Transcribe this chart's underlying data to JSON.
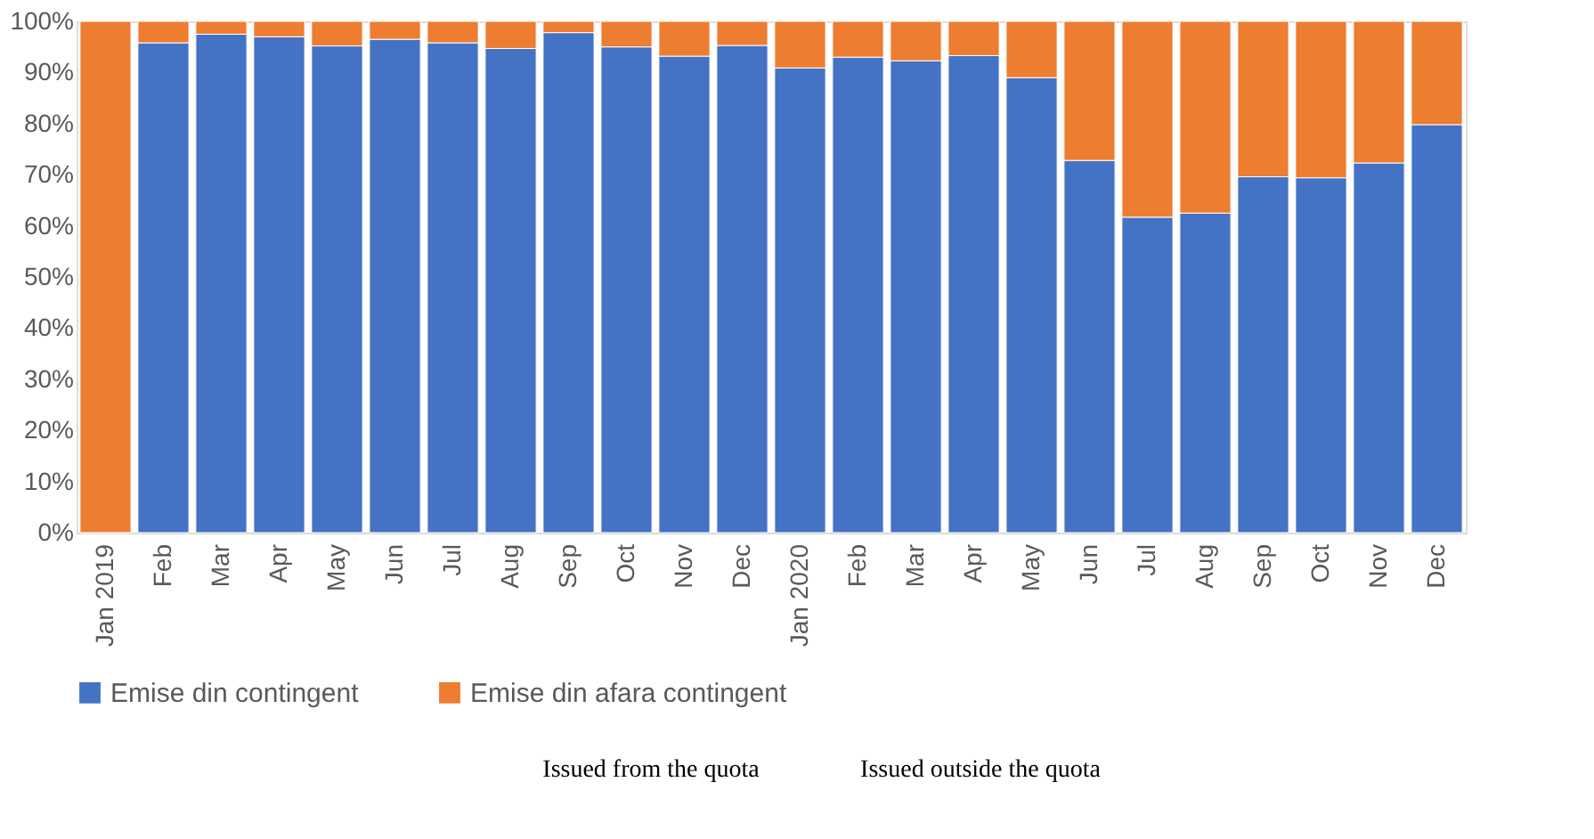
{
  "chart_data": {
    "type": "bar",
    "stacked": true,
    "categories": [
      "Jan 2019",
      "Feb",
      "Mar",
      "Apr",
      "May",
      "Jun",
      "Jul",
      "Aug",
      "Sep",
      "Oct",
      "Nov",
      "Dec",
      "Jan 2020",
      "Feb",
      "Mar",
      "Apr",
      "May",
      "Jun",
      "Jul",
      "Aug",
      "Sep",
      "Oct",
      "Nov",
      "Dec"
    ],
    "series": [
      {
        "name": "Emise din contingent",
        "color": "#4472c4",
        "values": [
          0,
          95.8,
          97.5,
          97,
          95.2,
          96.5,
          95.8,
          94.7,
          97.8,
          95,
          93.2,
          95.3,
          90.9,
          93,
          92.3,
          93.3,
          89,
          72.8,
          61.7,
          62.5,
          69.6,
          69.4,
          72.3,
          79.8
        ]
      },
      {
        "name": "Emise din afara contingent",
        "color": "#ed7d31",
        "values": [
          100,
          4.2,
          2.5,
          3,
          4.8,
          3.5,
          4.2,
          5.3,
          2.2,
          5,
          6.8,
          4.7,
          9.1,
          7,
          7.7,
          6.7,
          11,
          27.2,
          38.3,
          37.5,
          30.4,
          30.6,
          27.7,
          20.2
        ]
      }
    ],
    "ylim": [
      0,
      100
    ],
    "yticks": [
      {
        "value": 0,
        "label": "0%"
      },
      {
        "value": 10,
        "label": "10%"
      },
      {
        "value": 20,
        "label": "20%"
      },
      {
        "value": 30,
        "label": "30%"
      },
      {
        "value": 40,
        "label": "40%"
      },
      {
        "value": 50,
        "label": "50%"
      },
      {
        "value": 60,
        "label": "60%"
      },
      {
        "value": 70,
        "label": "70%"
      },
      {
        "value": 80,
        "label": "80%"
      },
      {
        "value": 90,
        "label": "90%"
      },
      {
        "value": 100,
        "label": "100%"
      }
    ],
    "grid": false,
    "legend": "bottom",
    "annotations": [
      "Issued from the quota",
      "Issued outside the quota"
    ]
  }
}
